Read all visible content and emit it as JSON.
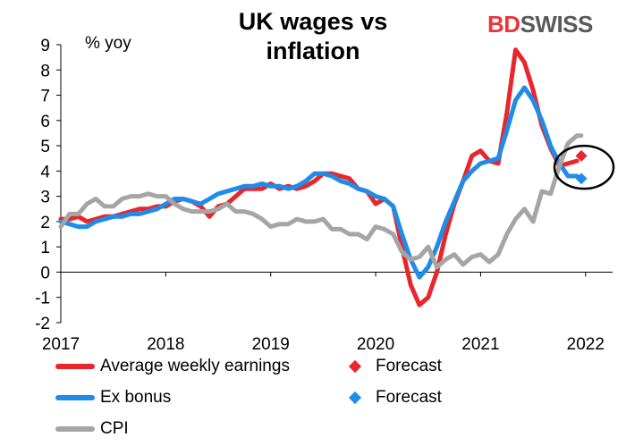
{
  "chart_data": {
    "type": "line",
    "title": "UK wages vs inflation",
    "ylabel": "% yoy",
    "xlabel": "",
    "ylim": [
      -2,
      9
    ],
    "xlim": [
      2017,
      2022.3
    ],
    "yticks": [
      -2,
      -1,
      0,
      1,
      2,
      3,
      4,
      5,
      6,
      7,
      8,
      9
    ],
    "xticks": [
      2017,
      2018,
      2019,
      2020,
      2021,
      2022
    ],
    "grid": false,
    "legend": "bottom",
    "series": [
      {
        "name": "Average weekly earnings",
        "color": "#e8262b",
        "x": [
          2017.0,
          2017.083,
          2017.167,
          2017.25,
          2017.333,
          2017.417,
          2017.5,
          2017.583,
          2017.667,
          2017.75,
          2017.833,
          2017.917,
          2018.0,
          2018.083,
          2018.167,
          2018.25,
          2018.333,
          2018.417,
          2018.5,
          2018.583,
          2018.667,
          2018.75,
          2018.833,
          2018.917,
          2019.0,
          2019.083,
          2019.167,
          2019.25,
          2019.333,
          2019.417,
          2019.5,
          2019.583,
          2019.667,
          2019.75,
          2019.833,
          2019.917,
          2020.0,
          2020.083,
          2020.167,
          2020.25,
          2020.333,
          2020.417,
          2020.5,
          2020.583,
          2020.667,
          2020.75,
          2020.833,
          2020.917,
          2021.0,
          2021.083,
          2021.167,
          2021.25,
          2021.333,
          2021.417,
          2021.5,
          2021.583,
          2021.667,
          2021.75,
          2021.833,
          2021.917
        ],
        "y": [
          2.1,
          2.1,
          2.2,
          2.0,
          2.1,
          2.2,
          2.2,
          2.3,
          2.4,
          2.5,
          2.5,
          2.6,
          2.6,
          2.8,
          2.9,
          2.8,
          2.6,
          2.2,
          2.6,
          2.7,
          3.0,
          3.3,
          3.3,
          3.3,
          3.5,
          3.3,
          3.4,
          3.3,
          3.4,
          3.6,
          3.9,
          3.9,
          3.8,
          3.7,
          3.3,
          3.2,
          2.7,
          2.9,
          2.6,
          1.0,
          -0.5,
          -1.3,
          -1.0,
          0.0,
          1.5,
          2.7,
          3.6,
          4.6,
          4.8,
          4.4,
          4.3,
          6.3,
          8.8,
          8.3,
          7.2,
          5.8,
          4.9,
          4.2,
          4.3,
          4.4
        ]
      },
      {
        "name": "Ex bonus",
        "color": "#1e8ce8",
        "x": [
          2017.0,
          2017.083,
          2017.167,
          2017.25,
          2017.333,
          2017.417,
          2017.5,
          2017.583,
          2017.667,
          2017.75,
          2017.833,
          2017.917,
          2018.0,
          2018.083,
          2018.167,
          2018.25,
          2018.333,
          2018.417,
          2018.5,
          2018.583,
          2018.667,
          2018.75,
          2018.833,
          2018.917,
          2019.0,
          2019.083,
          2019.167,
          2019.25,
          2019.333,
          2019.417,
          2019.5,
          2019.583,
          2019.667,
          2019.75,
          2019.833,
          2019.917,
          2020.0,
          2020.083,
          2020.167,
          2020.25,
          2020.333,
          2020.417,
          2020.5,
          2020.583,
          2020.667,
          2020.75,
          2020.833,
          2020.917,
          2021.0,
          2021.083,
          2021.167,
          2021.25,
          2021.333,
          2021.417,
          2021.5,
          2021.583,
          2021.667,
          2021.75,
          2021.833,
          2021.917
        ],
        "y": [
          2.0,
          1.9,
          1.8,
          1.8,
          2.0,
          2.1,
          2.2,
          2.2,
          2.3,
          2.3,
          2.4,
          2.5,
          2.7,
          2.9,
          2.9,
          2.8,
          2.7,
          2.9,
          3.1,
          3.2,
          3.3,
          3.4,
          3.4,
          3.5,
          3.4,
          3.4,
          3.3,
          3.4,
          3.6,
          3.9,
          3.9,
          3.8,
          3.6,
          3.5,
          3.3,
          3.2,
          3.0,
          2.9,
          2.6,
          1.5,
          0.5,
          -0.2,
          0.2,
          1.0,
          2.0,
          2.8,
          3.6,
          4.0,
          4.3,
          4.4,
          4.5,
          5.6,
          6.8,
          7.3,
          6.8,
          6.0,
          5.0,
          4.3,
          3.8,
          3.8
        ]
      },
      {
        "name": "CPI",
        "color": "#a5a5a5",
        "x": [
          2017.0,
          2017.083,
          2017.167,
          2017.25,
          2017.333,
          2017.417,
          2017.5,
          2017.583,
          2017.667,
          2017.75,
          2017.833,
          2017.917,
          2018.0,
          2018.083,
          2018.167,
          2018.25,
          2018.333,
          2018.417,
          2018.5,
          2018.583,
          2018.667,
          2018.75,
          2018.833,
          2018.917,
          2019.0,
          2019.083,
          2019.167,
          2019.25,
          2019.333,
          2019.417,
          2019.5,
          2019.583,
          2019.667,
          2019.75,
          2019.833,
          2019.917,
          2020.0,
          2020.083,
          2020.167,
          2020.25,
          2020.333,
          2020.417,
          2020.5,
          2020.583,
          2020.667,
          2020.75,
          2020.833,
          2020.917,
          2021.0,
          2021.083,
          2021.167,
          2021.25,
          2021.333,
          2021.417,
          2021.5,
          2021.583,
          2021.667,
          2021.75,
          2021.833,
          2021.917,
          2021.958
        ],
        "y": [
          1.8,
          2.3,
          2.3,
          2.7,
          2.9,
          2.6,
          2.6,
          2.9,
          3.0,
          3.0,
          3.1,
          3.0,
          3.0,
          2.7,
          2.5,
          2.4,
          2.4,
          2.4,
          2.5,
          2.7,
          2.4,
          2.4,
          2.3,
          2.1,
          1.8,
          1.9,
          1.9,
          2.1,
          2.0,
          2.0,
          2.1,
          1.7,
          1.7,
          1.5,
          1.5,
          1.3,
          1.8,
          1.7,
          1.5,
          0.8,
          0.5,
          0.6,
          1.0,
          0.2,
          0.5,
          0.7,
          0.3,
          0.6,
          0.7,
          0.4,
          0.7,
          1.5,
          2.1,
          2.5,
          2.0,
          3.2,
          3.1,
          4.2,
          5.1,
          5.4,
          5.4
        ]
      }
    ],
    "forecasts": [
      {
        "name": "Forecast",
        "color": "#e8262b",
        "x": 2021.917,
        "y": 4.6
      },
      {
        "name": "Forecast",
        "color": "#1e8ce8",
        "x": 2021.917,
        "y": 3.7
      }
    ],
    "highlight_color": "#000000"
  },
  "branding": {
    "part1": "BD",
    "part2": "SWISS"
  }
}
